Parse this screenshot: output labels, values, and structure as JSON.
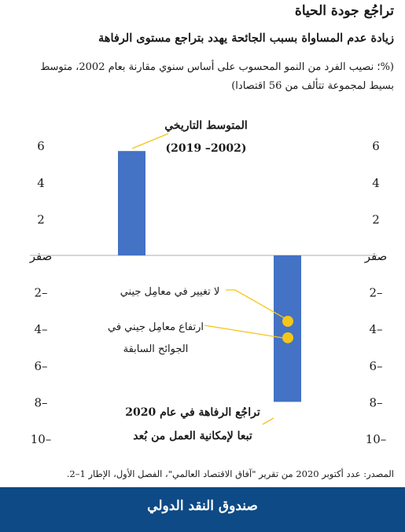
{
  "header": {
    "title": "تراجُع جودة الحياة",
    "subtitle": "زيادة عدم المساواة بسبب الجائحة يهدد بتراجع مستوى الرفاهة",
    "note": "(%؛ نصيب الفرد من النمو المحسوب على أساس سنوي مقارنة بعام 2002، متوسط بسيط لمجموعة تتألف من 56 اقتصادا)"
  },
  "chart_data": {
    "type": "bar",
    "categories": [
      "المتوسط التاريخي (2002– 2019)",
      "تراجُع الرفاهة في عام 2020 تبعا لإمكانية العمل من بُعد"
    ],
    "values": [
      5.7,
      -8.0
    ],
    "ylim": [
      -10,
      7
    ],
    "ytick_values": [
      6,
      4,
      2,
      0,
      -2,
      -4,
      -6,
      -8,
      -10
    ],
    "ytick_labels": [
      "6",
      "4",
      "2",
      "صفر",
      "–2",
      "–4",
      "–6",
      "–8",
      "–10"
    ],
    "bar_color": "#4472c4",
    "points": [
      {
        "label": "لا تغيير في معامِل جيني",
        "value": -3.6
      },
      {
        "label": "ارتفاع معامِل جيني في الجوائح السابقة",
        "value": -4.5
      }
    ],
    "point_color": "#f5c518",
    "annotations": [
      {
        "text": "المتوسط التاريخي",
        "text2": "(2002– 2019)",
        "bold": true
      },
      {
        "text": "لا تغيير في معامِل جيني",
        "text2": "",
        "bold": false
      },
      {
        "text": "ارتفاع معامِل جيني في",
        "text2": "الجوائح السابقة",
        "bold": false
      },
      {
        "text": "تراجُع الرفاهة في عام 2020",
        "text2": "تبعا لإمكانية العمل من بُعد",
        "bold": true
      }
    ]
  },
  "source": "المصدر: عدد أكتوبر 2020 من تقرير \"آفاق الاقتصاد العالمي\"، الفصل الأول، الإطار 1–2.",
  "footer": {
    "label": "صندوق النقد الدولي"
  },
  "colors": {
    "footer_bg": "#0d4a86",
    "bar": "#4472c4",
    "point": "#f5c518"
  }
}
